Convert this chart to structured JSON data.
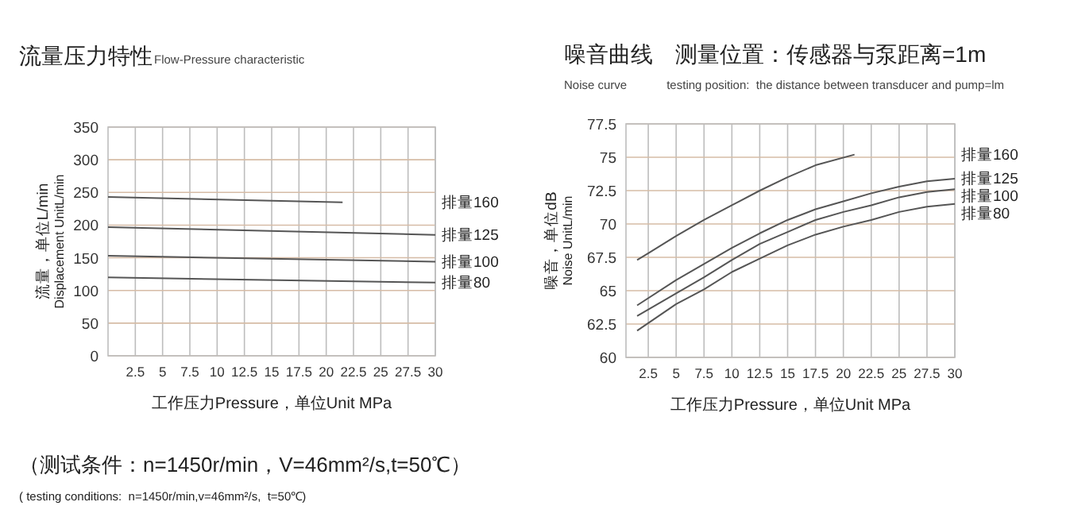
{
  "chart_data": [
    {
      "type": "line",
      "title": "流量压力特性",
      "subtitle": "Flow-Pressure characteristic",
      "xlabel": "工作压力Pressure，单位Unit MPa",
      "ylabel": "流量，单位L/min\nDisplacement UnitL/min",
      "xlim": [
        0,
        30
      ],
      "xticks": [
        2.5,
        5,
        7.5,
        10,
        12.5,
        15,
        17.5,
        20,
        22.5,
        25,
        27.5,
        30
      ],
      "ylim": [
        0,
        350
      ],
      "yticks": [
        0,
        50,
        100,
        150,
        200,
        250,
        300,
        350
      ],
      "grid": true,
      "series": [
        {
          "name": "排量160",
          "color": "#555555",
          "x": [
            0,
            21.5
          ],
          "values": [
            243,
            235
          ]
        },
        {
          "name": "排量125",
          "color": "#555555",
          "x": [
            0,
            30
          ],
          "values": [
            197,
            185
          ]
        },
        {
          "name": "排量100",
          "color": "#555555",
          "x": [
            0,
            30
          ],
          "values": [
            153,
            144
          ]
        },
        {
          "name": "排量80",
          "color": "#555555",
          "x": [
            0,
            30
          ],
          "values": [
            120,
            112
          ]
        }
      ],
      "annotations": [
        "（测试条件：n=1450r/min，V=46mm²/s,t=50℃）",
        "( testing conditions:  n=1450r/min,v=46mm²/s,  t=50℃)"
      ]
    },
    {
      "type": "line",
      "title": "噪音曲线　测量位置：传感器与泵距离=1m",
      "subtitle": "Noise curve            testing position:  the distance between transducer and pump=lm",
      "xlabel": "工作压力Pressure，单位Unit MPa",
      "ylabel": "噪音，单位dB\nNoise UnitL/min",
      "xlim": [
        0.5,
        30
      ],
      "xticks": [
        2.5,
        5,
        7.5,
        10,
        12.5,
        15,
        17.5,
        20,
        22.5,
        25,
        27.5,
        30
      ],
      "ylim": [
        60,
        77.5
      ],
      "yticks": [
        60,
        62.5,
        65,
        67.5,
        70,
        72.5,
        75,
        77.5
      ],
      "grid": true,
      "series": [
        {
          "name": "排量160",
          "color": "#555555",
          "x": [
            1.5,
            2.5,
            5,
            7.5,
            10,
            12.5,
            15,
            17.5,
            21
          ],
          "values": [
            67.3,
            67.8,
            69.1,
            70.3,
            71.4,
            72.5,
            73.5,
            74.4,
            75.2
          ]
        },
        {
          "name": "排量125",
          "color": "#555555",
          "x": [
            1.5,
            5,
            7.5,
            10,
            12.5,
            15,
            17.5,
            20,
            22.5,
            25,
            27.5,
            30
          ],
          "values": [
            63.9,
            65.8,
            67.0,
            68.2,
            69.3,
            70.3,
            71.1,
            71.7,
            72.3,
            72.8,
            73.2,
            73.4
          ]
        },
        {
          "name": "排量100",
          "color": "#555555",
          "x": [
            1.5,
            5,
            7.5,
            10,
            12.5,
            15,
            17.5,
            20,
            22.5,
            25,
            27.5,
            30
          ],
          "values": [
            63.1,
            64.8,
            66.0,
            67.3,
            68.5,
            69.4,
            70.3,
            70.9,
            71.4,
            72.0,
            72.4,
            72.6
          ]
        },
        {
          "name": "排量80",
          "color": "#555555",
          "x": [
            1.5,
            5,
            7.5,
            10,
            12.5,
            15,
            17.5,
            20,
            22.5,
            25,
            27.5,
            30
          ],
          "values": [
            62.0,
            64.0,
            65.1,
            66.4,
            67.4,
            68.4,
            69.2,
            69.8,
            70.3,
            70.9,
            71.3,
            71.5
          ]
        }
      ]
    }
  ]
}
